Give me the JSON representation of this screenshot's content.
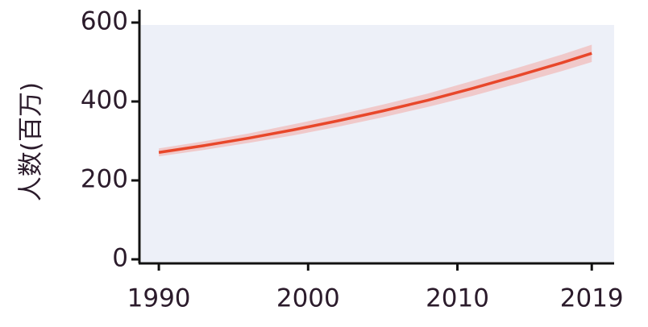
{
  "chart_data": {
    "type": "line",
    "y_label": "人数(百万)",
    "x": [
      1990,
      1993,
      1996,
      1999,
      2002,
      2005,
      2008,
      2011,
      2014,
      2017,
      2019
    ],
    "values": [
      271,
      288,
      307,
      328,
      351,
      376,
      403,
      433,
      465,
      498,
      522
    ],
    "lower": [
      261,
      277,
      295,
      314,
      336,
      360,
      386,
      414,
      445,
      477,
      500
    ],
    "upper": [
      281,
      299,
      319,
      342,
      366,
      392,
      420,
      452,
      485,
      519,
      544
    ],
    "color": "#e8472a",
    "band_color": "#f2aaa4",
    "xlim": [
      1988.7,
      2020.5
    ],
    "xticks": [
      1990,
      2000,
      2010,
      2019
    ],
    "ylim": [
      0,
      600
    ],
    "yticks": [
      0,
      200,
      400,
      600
    ]
  }
}
